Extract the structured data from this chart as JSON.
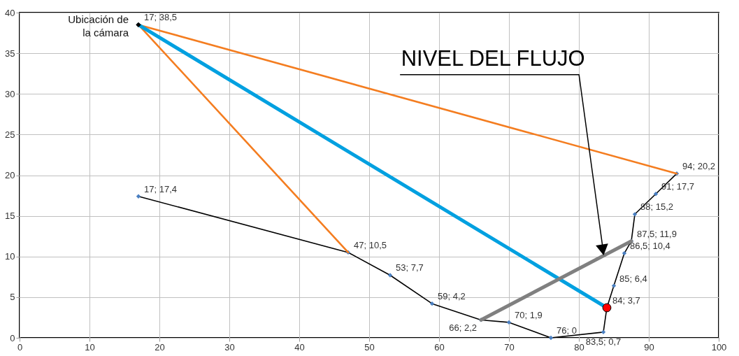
{
  "chart_data": {
    "type": "line",
    "xlim": [
      0,
      100
    ],
    "ylim": [
      0,
      40
    ],
    "xticks": [
      0,
      10,
      20,
      30,
      40,
      50,
      60,
      70,
      80,
      90,
      100
    ],
    "yticks": [
      0,
      5,
      10,
      15,
      20,
      25,
      30,
      35,
      40
    ],
    "grid": true,
    "annotations": [
      {
        "text": "Ubicación de la cámara",
        "x": 17,
        "y": 38.5
      },
      "NIVEL DEL FLUJO"
    ],
    "series": [
      {
        "color": "#000000",
        "marker": "diamond",
        "colors": [
          "#4a7fc1",
          "#4a7fc1",
          "#4a7fc1",
          "#4a7fc1",
          "#4a7fc1",
          "#4a7fc1",
          "#4a7fc1",
          "#4a7fc1",
          "#4a7fc1",
          "#4a7fc1",
          "#4a7fc1",
          "#4a7fc1",
          "#4a7fc1",
          "#4a7fc1",
          "#4a7fc1"
        ],
        "x": [
          17,
          47,
          53,
          59,
          66,
          70,
          76,
          83.5,
          84,
          85,
          86.5,
          87.5,
          88,
          91,
          94
        ],
        "values": [
          17.4,
          10.5,
          7.7,
          4.2,
          2.2,
          1.9,
          0,
          0.7,
          3.7,
          6.4,
          10.4,
          11.9,
          15.2,
          17.7,
          20.2
        ],
        "value_labels": [
          "17; 17,4",
          "47; 10,5",
          "53; 7,7",
          "59; 4,2",
          "66; 2,2",
          "70; 1,9",
          "76; 0",
          "83,5; 0,7",
          null,
          "85; 6,4",
          "86,5; 10,4",
          "87,5; 11,9",
          "88; 15,2",
          "91; 17,7",
          "94; 20,2"
        ]
      },
      {
        "color": "#f47d20",
        "marker": "none",
        "x": [
          94,
          17,
          47
        ],
        "values": [
          20.2,
          38.5,
          10.5
        ]
      },
      {
        "color": "#00a0e0",
        "marker": "none",
        "x": [
          17,
          84
        ],
        "values": [
          38.5,
          3.7
        ]
      },
      {
        "color": "#808080",
        "marker": "none",
        "x": [
          66,
          87.5
        ],
        "values": [
          2.2,
          11.9
        ]
      },
      {
        "type": "scatter",
        "color": "#000000",
        "marker": "diamond",
        "x": [
          17
        ],
        "values": [
          38.5
        ],
        "value_labels": [
          "17; 38,5"
        ]
      },
      {
        "type": "scatter",
        "color": "#ff0000",
        "marker": "circle",
        "x": [
          84
        ],
        "values": [
          3.7
        ],
        "value_labels": [
          "84; 3,7"
        ]
      }
    ]
  }
}
